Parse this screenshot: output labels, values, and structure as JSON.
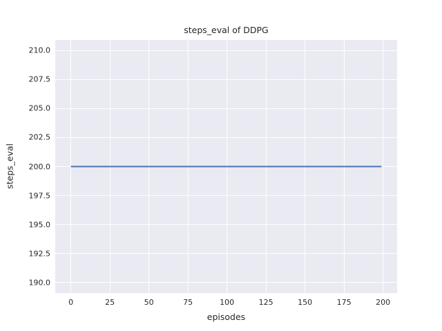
{
  "chart_data": {
    "type": "line",
    "title": "steps_eval of DDPG",
    "xlabel": "episodes",
    "ylabel": "steps_eval",
    "series": [
      {
        "name": "steps_eval",
        "color": "#4C72B0",
        "x": [
          0,
          199
        ],
        "y": [
          200,
          200
        ],
        "note": "constant line at 200 steps for every evaluated episode"
      }
    ],
    "xlim": [
      -10,
      209
    ],
    "ylim": [
      189.1,
      210.9
    ],
    "xticks": [
      0,
      25,
      50,
      75,
      100,
      125,
      150,
      175,
      200
    ],
    "xtick_labels": [
      "0",
      "25",
      "50",
      "75",
      "100",
      "125",
      "150",
      "175",
      "200"
    ],
    "yticks": [
      190.0,
      192.5,
      195.0,
      197.5,
      200.0,
      202.5,
      205.0,
      207.5,
      210.0
    ],
    "ytick_labels": [
      "190.0",
      "192.5",
      "195.0",
      "197.5",
      "200.0",
      "202.5",
      "205.0",
      "207.5",
      "210.0"
    ],
    "grid": true,
    "legend": "none",
    "style": {
      "plot_bg": "#EAEAF2",
      "grid_color": "#FFFFFF",
      "text_color": "#262626",
      "figure_bg": "#FFFFFF",
      "line_width": 2
    }
  }
}
